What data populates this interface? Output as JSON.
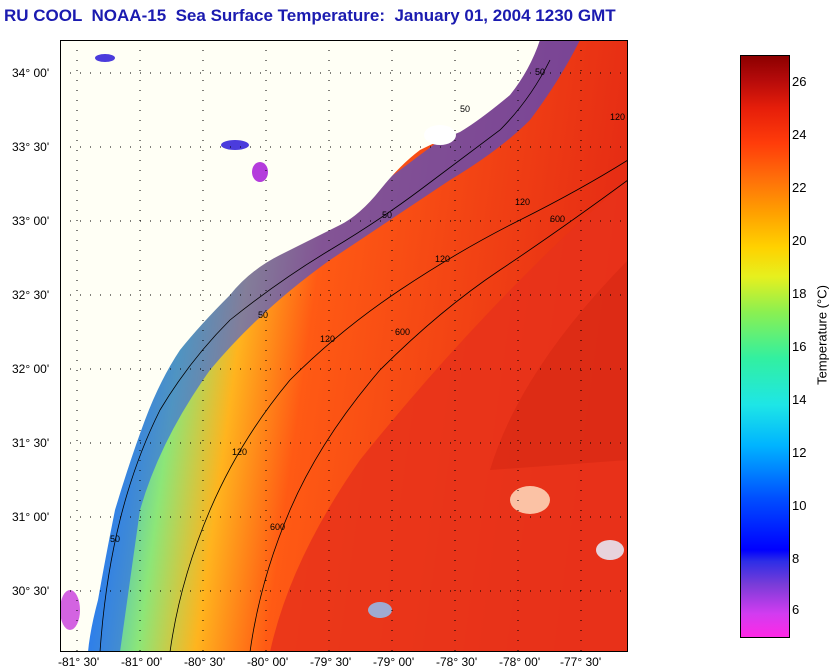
{
  "title": "RU COOL  NOAA-15  Sea Surface Temperature:  January 01, 2004 1230 GMT",
  "lat_labels": [
    "34° 00'",
    "33° 30'",
    "33° 00'",
    "32° 30'",
    "32° 00'",
    "31° 30'",
    "31° 00'",
    "30° 30'"
  ],
  "lon_labels": [
    "-81° 30'",
    "-81° 00'",
    "-80° 30'",
    "-80° 00'",
    "-79° 30'",
    "-79° 00'",
    "-78° 30'",
    "-78° 00'",
    "-77° 30'"
  ],
  "colorbar": {
    "label": "Temperature (°C)",
    "ticks": [
      "26",
      "24",
      "22",
      "20",
      "18",
      "16",
      "14",
      "12",
      "10",
      "8",
      "6"
    ],
    "min": 5,
    "max": 27
  },
  "contour_labels": [
    "50",
    "50",
    "50",
    "50",
    "50",
    "120",
    "120",
    "120",
    "120",
    "120",
    "600",
    "600",
    "600"
  ],
  "colors": {
    "title": "#1b1bb0",
    "land": "#fffff5",
    "warm": "#e62d14",
    "cold": "#1e3cff"
  }
}
